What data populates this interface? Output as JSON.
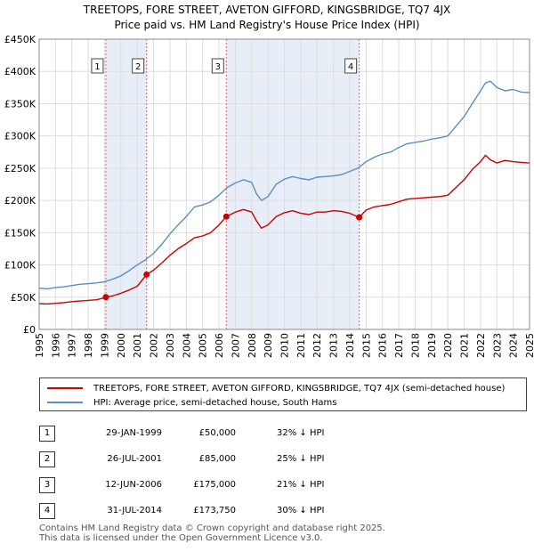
{
  "title_line1": "TREETOPS, FORE STREET, AVETON GIFFORD, KINGSBRIDGE, TQ7 4JX",
  "title_line2": "Price paid vs. HM Land Registry's House Price Index (HPI)",
  "legend": {
    "property_label": "TREETOPS, FORE STREET, AVETON GIFFORD, KINGSBRIDGE, TQ7 4JX (semi-detached house)",
    "hpi_label": "HPI: Average price, semi-detached house, South Hams"
  },
  "colors": {
    "property": "#cc0000",
    "hpi": "#5b8ec4",
    "shade": "#e8eef8",
    "vline": "#e06666",
    "grid": "#dddddd"
  },
  "sales": [
    {
      "num": "1",
      "date": "29-JAN-1999",
      "price": "£50,000",
      "hpi": "32% ↓ HPI"
    },
    {
      "num": "2",
      "date": "26-JUL-2001",
      "price": "£85,000",
      "hpi": "25% ↓ HPI"
    },
    {
      "num": "3",
      "date": "12-JUN-2006",
      "price": "£175,000",
      "hpi": "21% ↓ HPI"
    },
    {
      "num": "4",
      "date": "31-JUL-2014",
      "price": "£173,750",
      "hpi": "30% ↓ HPI"
    }
  ],
  "footer_line1": "Contains HM Land Registry data © Crown copyright and database right 2025.",
  "footer_line2": "This data is licensed under the Open Government Licence v3.0.",
  "chart_data": {
    "type": "line",
    "title": "Price paid vs. HM Land Registry's House Price Index (HPI)",
    "xlim": [
      1995,
      2025
    ],
    "ylim": [
      0,
      450000
    ],
    "x_ticks": [
      "1995",
      "1996",
      "1997",
      "1998",
      "1999",
      "2000",
      "2001",
      "2002",
      "2003",
      "2004",
      "2005",
      "2006",
      "2007",
      "2008",
      "2009",
      "2010",
      "2011",
      "2012",
      "2013",
      "2014",
      "2015",
      "2016",
      "2017",
      "2018",
      "2019",
      "2020",
      "2021",
      "2022",
      "2023",
      "2024",
      "2025"
    ],
    "y_ticks": [
      {
        "value": 0,
        "label": "£0"
      },
      {
        "value": 50000,
        "label": "£50K"
      },
      {
        "value": 100000,
        "label": "£100K"
      },
      {
        "value": 150000,
        "label": "£150K"
      },
      {
        "value": 200000,
        "label": "£200K"
      },
      {
        "value": 250000,
        "label": "£250K"
      },
      {
        "value": 300000,
        "label": "£300K"
      },
      {
        "value": 350000,
        "label": "£350K"
      },
      {
        "value": 400000,
        "label": "£400K"
      },
      {
        "value": 450000,
        "label": "£450K"
      }
    ],
    "shaded_ranges": [
      [
        1999.08,
        2001.57
      ],
      [
        2006.45,
        2014.58
      ]
    ],
    "markers": [
      {
        "label": "1",
        "x": 1999.08,
        "y": 50000
      },
      {
        "label": "2",
        "x": 2001.57,
        "y": 85000
      },
      {
        "label": "3",
        "x": 2006.45,
        "y": 175000
      },
      {
        "label": "4",
        "x": 2014.58,
        "y": 173750
      }
    ],
    "series": [
      {
        "name": "HPI: Average price, semi-detached house, South Hams",
        "x": [
          1995,
          1995.5,
          1996,
          1996.5,
          1997,
          1997.5,
          1998,
          1998.5,
          1999,
          1999.5,
          2000,
          2000.5,
          2001,
          2001.5,
          2002,
          2002.5,
          2003,
          2003.5,
          2004,
          2004.5,
          2005,
          2005.5,
          2006,
          2006.5,
          2007,
          2007.5,
          2008,
          2008.3,
          2008.6,
          2009,
          2009.5,
          2010,
          2010.5,
          2011,
          2011.5,
          2012,
          2012.5,
          2013,
          2013.5,
          2014,
          2014.5,
          2015,
          2015.5,
          2016,
          2016.5,
          2017,
          2017.5,
          2018,
          2018.5,
          2019,
          2019.5,
          2020,
          2020.5,
          2021,
          2021.5,
          2022,
          2022.3,
          2022.6,
          2023,
          2023.5,
          2024,
          2024.5,
          2025
        ],
        "values": [
          64000,
          63000,
          65000,
          66000,
          68000,
          70000,
          71000,
          72000,
          74000,
          78000,
          83000,
          91000,
          100000,
          108000,
          118000,
          132000,
          148000,
          162000,
          175000,
          190000,
          193000,
          198000,
          208000,
          220000,
          227000,
          232000,
          228000,
          210000,
          200000,
          206000,
          225000,
          233000,
          237000,
          234000,
          232000,
          236000,
          237000,
          238000,
          240000,
          245000,
          250000,
          260000,
          267000,
          272000,
          275000,
          282000,
          288000,
          290000,
          292000,
          295000,
          297000,
          300000,
          315000,
          330000,
          350000,
          370000,
          382000,
          385000,
          375000,
          370000,
          372000,
          368000,
          367000
        ]
      },
      {
        "name": "TREETOPS, FORE STREET, AVETON GIFFORD, KINGSBRIDGE, TQ7 4JX (semi-detached house)",
        "x": [
          1995,
          1995.5,
          1996,
          1996.5,
          1997,
          1997.5,
          1998,
          1998.5,
          1999,
          1999.08,
          1999.5,
          2000,
          2000.5,
          2001,
          2001.57,
          2002,
          2002.5,
          2003,
          2003.5,
          2004,
          2004.5,
          2005,
          2005.5,
          2006,
          2006.45,
          2007,
          2007.5,
          2008,
          2008.3,
          2008.6,
          2009,
          2009.5,
          2010,
          2010.5,
          2011,
          2011.5,
          2012,
          2012.5,
          2013,
          2013.5,
          2014,
          2014.58,
          2015,
          2015.5,
          2016,
          2016.5,
          2017,
          2017.5,
          2018,
          2018.5,
          2019,
          2019.5,
          2020,
          2020.5,
          2021,
          2021.5,
          2022,
          2022.3,
          2022.6,
          2023,
          2023.5,
          2024,
          2024.5,
          2025
        ],
        "values": [
          40000,
          39500,
          40500,
          41500,
          43000,
          44000,
          45000,
          46000,
          49000,
          50000,
          52000,
          56000,
          61000,
          67000,
          85000,
          92000,
          103000,
          115000,
          125000,
          133000,
          142000,
          145000,
          150000,
          162000,
          175000,
          182000,
          186000,
          182000,
          168000,
          157000,
          162000,
          175000,
          181000,
          184000,
          180000,
          178000,
          182000,
          182000,
          184000,
          183000,
          180000,
          173750,
          185000,
          190000,
          192000,
          194000,
          198000,
          202000,
          203000,
          204000,
          205000,
          206000,
          208000,
          220000,
          232000,
          248000,
          260000,
          270000,
          263000,
          258000,
          262000,
          260000,
          259000,
          258000
        ]
      }
    ]
  }
}
